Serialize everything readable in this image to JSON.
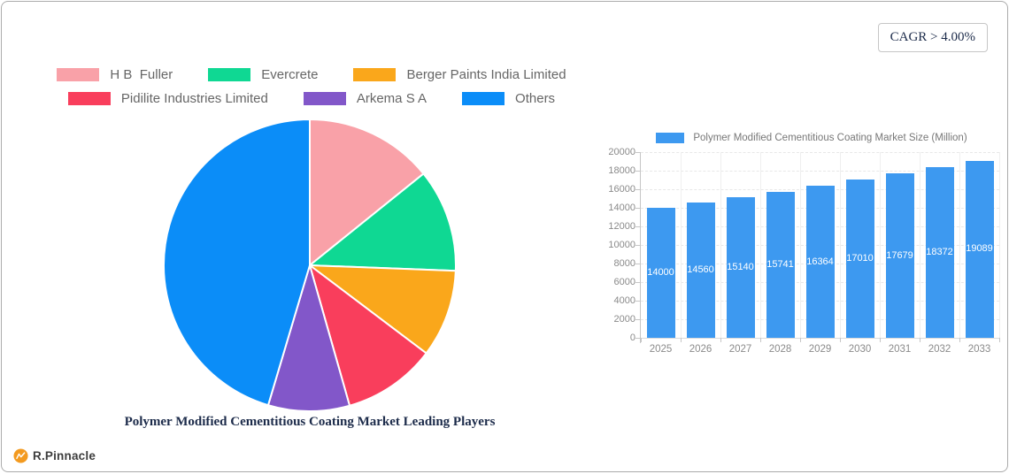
{
  "cagr_badge": {
    "text": "CAGR > 4.00%"
  },
  "logo": {
    "text": "R.Pinnacle",
    "icon_color": "#F39A1F"
  },
  "chart_data": [
    {
      "type": "pie",
      "title": "Polymer Modified Cementitious Coating Market Leading Players",
      "legend_position": "top",
      "start_angle_deg": 0,
      "direction": "clockwise",
      "slices": [
        {
          "label": "H B  Fuller",
          "color": "#F9A1A8",
          "percent": 14.2
        },
        {
          "label": "Evercrete",
          "color": "#0FD893",
          "percent": 11.4
        },
        {
          "label": "Berger Paints India Limited",
          "color": "#FAA71B",
          "percent": 9.7
        },
        {
          "label": "Pidilite Industries Limited",
          "color": "#F93E5C",
          "percent": 10.3
        },
        {
          "label": "Arkema S A",
          "color": "#8257C9",
          "percent": 9.0
        },
        {
          "label": "Others",
          "color": "#0B8DF8",
          "percent": 45.4
        }
      ]
    },
    {
      "type": "bar",
      "series_label": "Polymer Modified Cementitious Coating Market Size (Million)",
      "categories": [
        "2025",
        "2026",
        "2027",
        "2028",
        "2029",
        "2030",
        "2031",
        "2032",
        "2033"
      ],
      "values": [
        14000,
        14560,
        15140,
        15741,
        16364,
        17010,
        17679,
        18372,
        19089
      ],
      "bar_color": "#3D99F0",
      "ylabel": "",
      "xlabel": "",
      "ylim": [
        0,
        20000
      ],
      "ytick_step": 2000,
      "grid": true,
      "value_labels": "inside-middle-white",
      "legend_position": "top"
    }
  ]
}
